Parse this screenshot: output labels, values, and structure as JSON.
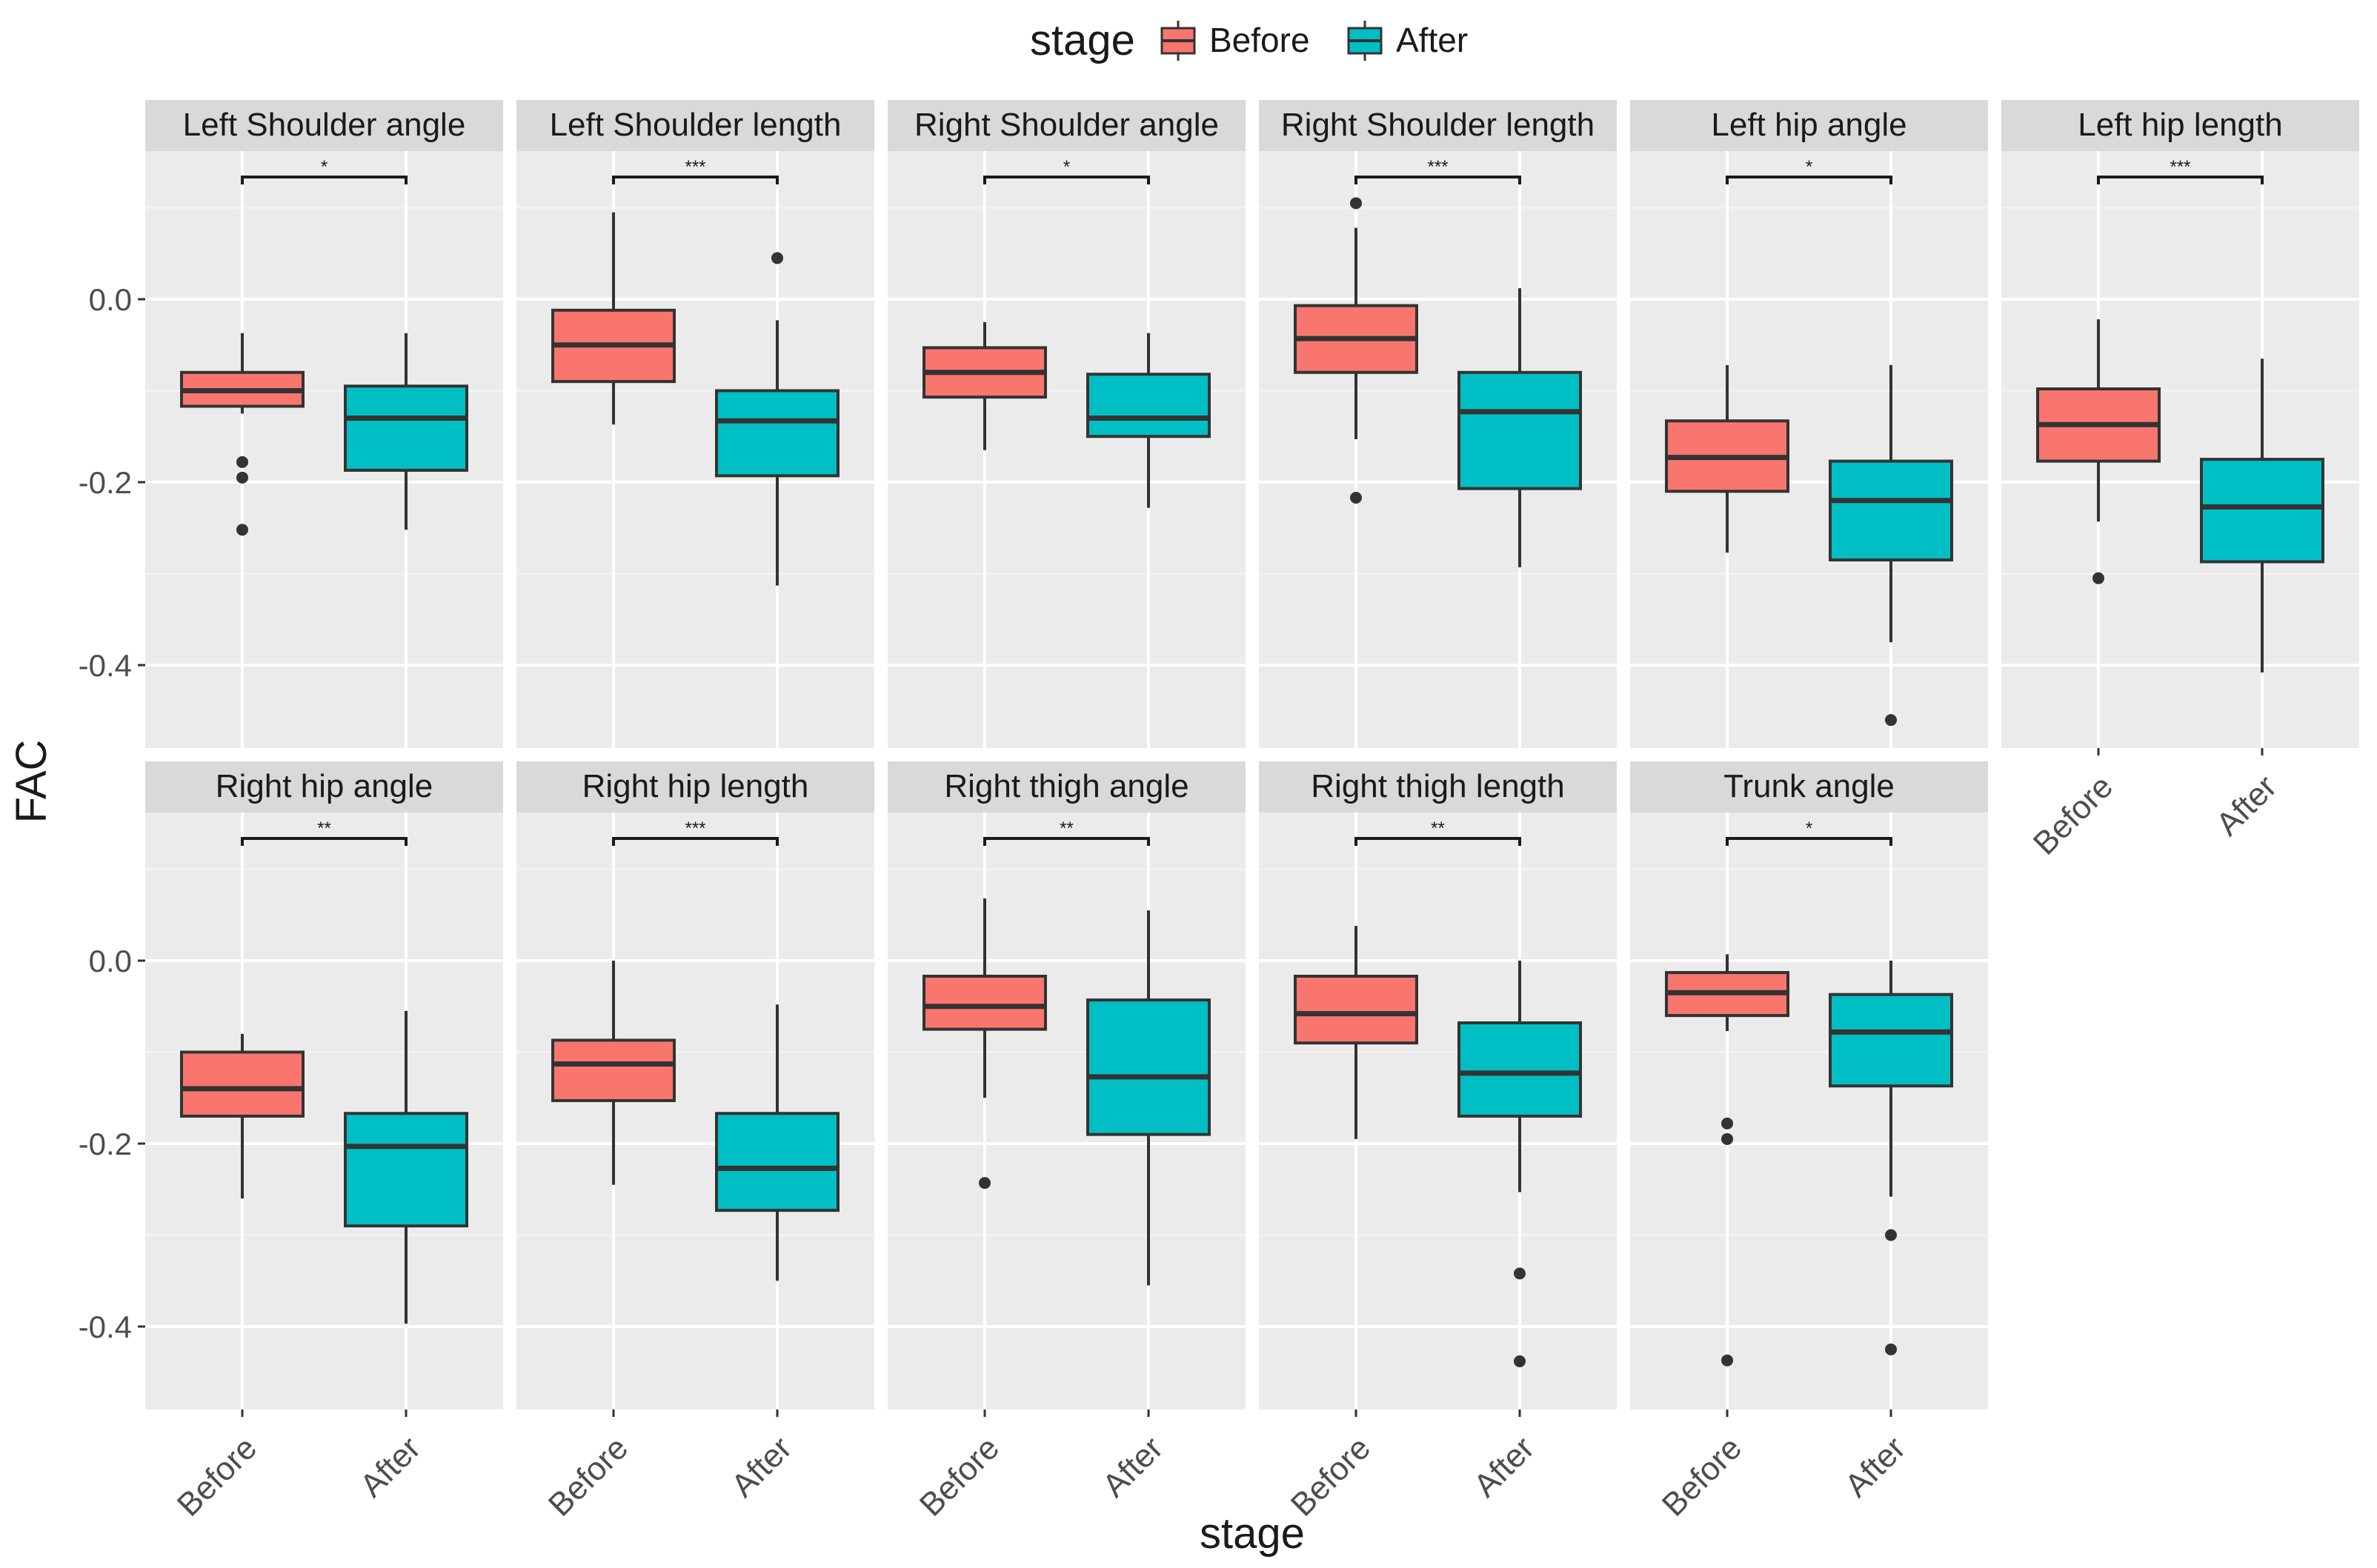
{
  "chart_data": {
    "type": "boxplot-facets",
    "ylabel": "FAC",
    "xlabel": "stage",
    "legend": {
      "title": "stage",
      "placement": "top",
      "entries": [
        {
          "label": "Before",
          "color": "#F8766D"
        },
        {
          "label": "After",
          "color": "#00BFC4"
        }
      ]
    },
    "categories": [
      "Before",
      "After"
    ],
    "y_ticks": [
      "0.0",
      "-0.2",
      "-0.4"
    ],
    "y_tick_values": [
      0.0,
      -0.2,
      -0.4
    ],
    "ylim": [
      -0.49,
      0.14
    ],
    "grid": true,
    "facets": [
      {
        "title": "Left Shoulder angle",
        "sig": "*",
        "boxes": [
          {
            "q1": -0.117,
            "median": -0.1,
            "q3": -0.08,
            "whisker_low": -0.125,
            "whisker_high": -0.037,
            "outliers": [
              -0.178,
              -0.195,
              -0.252
            ]
          },
          {
            "q1": -0.187,
            "median": -0.13,
            "q3": -0.095,
            "whisker_low": -0.252,
            "whisker_high": -0.037,
            "outliers": []
          }
        ]
      },
      {
        "title": "Left Shoulder length",
        "sig": "***",
        "boxes": [
          {
            "q1": -0.09,
            "median": -0.05,
            "q3": -0.012,
            "whisker_low": -0.137,
            "whisker_high": 0.095,
            "outliers": []
          },
          {
            "q1": -0.193,
            "median": -0.133,
            "q3": -0.1,
            "whisker_low": -0.313,
            "whisker_high": -0.023,
            "outliers": [
              0.045
            ]
          }
        ]
      },
      {
        "title": "Right Shoulder angle",
        "sig": "*",
        "boxes": [
          {
            "q1": -0.107,
            "median": -0.08,
            "q3": -0.053,
            "whisker_low": -0.165,
            "whisker_high": -0.025,
            "outliers": []
          },
          {
            "q1": -0.15,
            "median": -0.13,
            "q3": -0.082,
            "whisker_low": -0.228,
            "whisker_high": -0.037,
            "outliers": []
          }
        ]
      },
      {
        "title": "Right Shoulder length",
        "sig": "***",
        "boxes": [
          {
            "q1": -0.08,
            "median": -0.043,
            "q3": -0.007,
            "whisker_low": -0.153,
            "whisker_high": 0.078,
            "outliers": [
              0.105,
              -0.217
            ]
          },
          {
            "q1": -0.207,
            "median": -0.123,
            "q3": -0.08,
            "whisker_low": -0.293,
            "whisker_high": 0.012,
            "outliers": []
          }
        ]
      },
      {
        "title": "Left hip angle",
        "sig": "*",
        "boxes": [
          {
            "q1": -0.21,
            "median": -0.173,
            "q3": -0.133,
            "whisker_low": -0.277,
            "whisker_high": -0.072,
            "outliers": []
          },
          {
            "q1": -0.285,
            "median": -0.22,
            "q3": -0.177,
            "whisker_low": -0.375,
            "whisker_high": -0.072,
            "outliers": [
              -0.46
            ]
          }
        ]
      },
      {
        "title": "Left hip length",
        "sig": "***",
        "boxes": [
          {
            "q1": -0.177,
            "median": -0.137,
            "q3": -0.098,
            "whisker_low": -0.243,
            "whisker_high": -0.022,
            "outliers": [
              -0.305
            ]
          },
          {
            "q1": -0.287,
            "median": -0.227,
            "q3": -0.175,
            "whisker_low": -0.408,
            "whisker_high": -0.065,
            "outliers": []
          }
        ]
      },
      {
        "title": "Right hip angle",
        "sig": "**",
        "boxes": [
          {
            "q1": -0.17,
            "median": -0.14,
            "q3": -0.1,
            "whisker_low": -0.26,
            "whisker_high": -0.08,
            "outliers": []
          },
          {
            "q1": -0.29,
            "median": -0.203,
            "q3": -0.167,
            "whisker_low": -0.397,
            "whisker_high": -0.055,
            "outliers": []
          }
        ]
      },
      {
        "title": "Right hip length",
        "sig": "***",
        "boxes": [
          {
            "q1": -0.153,
            "median": -0.113,
            "q3": -0.087,
            "whisker_low": -0.245,
            "whisker_high": 0.0,
            "outliers": []
          },
          {
            "q1": -0.273,
            "median": -0.227,
            "q3": -0.167,
            "whisker_low": -0.35,
            "whisker_high": -0.048,
            "outliers": []
          }
        ]
      },
      {
        "title": "Right thigh angle",
        "sig": "**",
        "boxes": [
          {
            "q1": -0.075,
            "median": -0.05,
            "q3": -0.017,
            "whisker_low": -0.15,
            "whisker_high": 0.068,
            "outliers": [
              -0.243
            ]
          },
          {
            "q1": -0.19,
            "median": -0.127,
            "q3": -0.043,
            "whisker_low": -0.355,
            "whisker_high": 0.055,
            "outliers": []
          }
        ]
      },
      {
        "title": "Right thigh length",
        "sig": "**",
        "boxes": [
          {
            "q1": -0.09,
            "median": -0.058,
            "q3": -0.017,
            "whisker_low": -0.195,
            "whisker_high": 0.038,
            "outliers": []
          },
          {
            "q1": -0.17,
            "median": -0.123,
            "q3": -0.068,
            "whisker_low": -0.253,
            "whisker_high": 0.0,
            "outliers": [
              -0.342,
              -0.438
            ]
          }
        ]
      },
      {
        "title": "Trunk angle",
        "sig": "*",
        "boxes": [
          {
            "q1": -0.06,
            "median": -0.035,
            "q3": -0.013,
            "whisker_low": -0.077,
            "whisker_high": 0.007,
            "outliers": [
              -0.178,
              -0.195,
              -0.437
            ]
          },
          {
            "q1": -0.137,
            "median": -0.078,
            "q3": -0.037,
            "whisker_low": -0.258,
            "whisker_high": 0.0,
            "outliers": [
              -0.3,
              -0.425
            ]
          }
        ]
      }
    ]
  }
}
